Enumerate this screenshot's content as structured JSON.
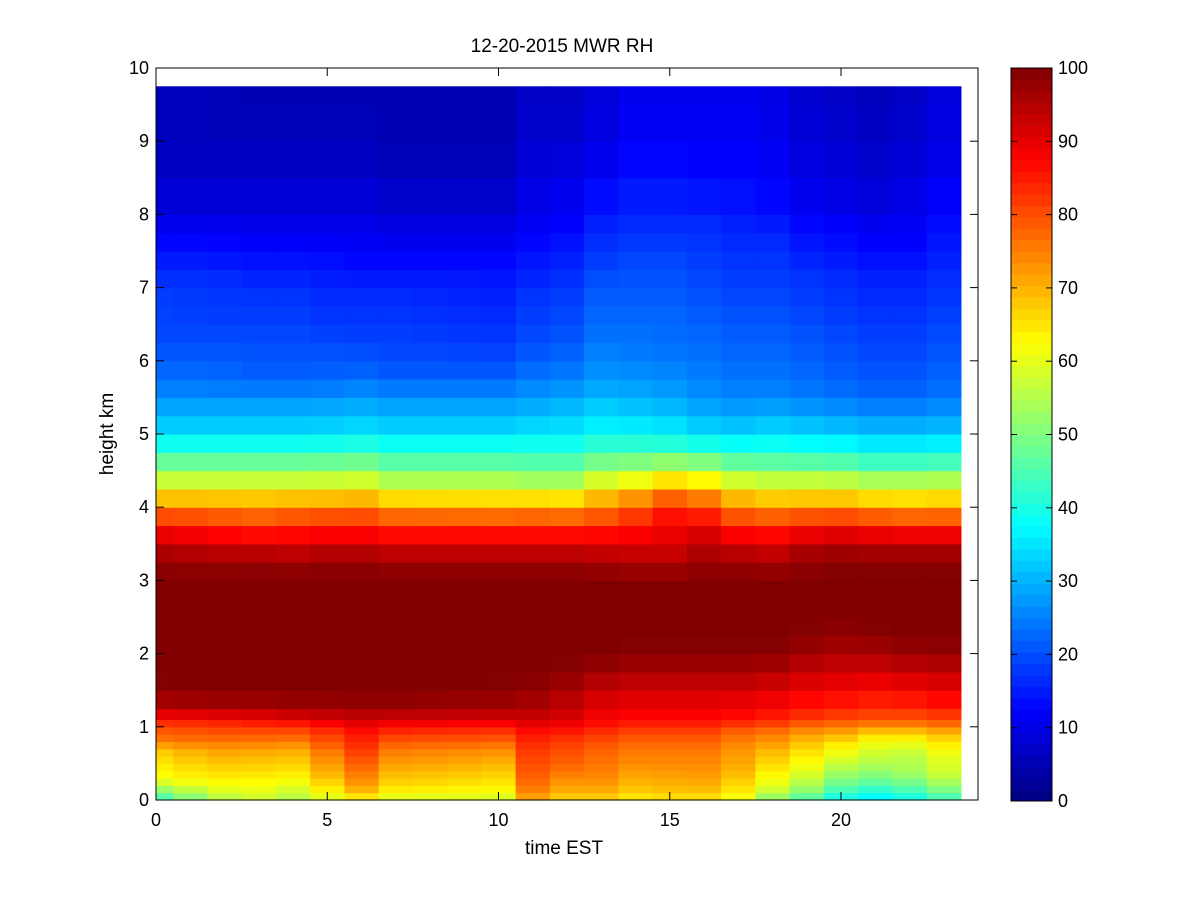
{
  "chart_data": {
    "type": "heatmap",
    "title": "12-20-2015 MWR RH",
    "xlabel": "time EST",
    "ylabel": "height km",
    "xlim": [
      0,
      24
    ],
    "ylim": [
      0,
      10
    ],
    "xticks": [
      0,
      5,
      10,
      15,
      20
    ],
    "yticks": [
      0,
      1,
      2,
      3,
      4,
      5,
      6,
      7,
      8,
      9,
      10
    ],
    "colorbar": {
      "range": [
        0,
        100
      ],
      "ticks": [
        0,
        10,
        20,
        30,
        40,
        50,
        60,
        70,
        80,
        90,
        100
      ],
      "colormap": "jet"
    },
    "time_centers": [
      0,
      1,
      2,
      3,
      4,
      5,
      6,
      7,
      8,
      9,
      10,
      11,
      12,
      13,
      14,
      15,
      16,
      17,
      18,
      19,
      20,
      21,
      22,
      23
    ],
    "height_edges": [
      0,
      0.1,
      0.2,
      0.3,
      0.4,
      0.5,
      0.6,
      0.7,
      0.8,
      0.9,
      1.0,
      1.1,
      1.25,
      1.5,
      1.75,
      2.0,
      2.25,
      2.5,
      2.75,
      3.0,
      3.25,
      3.5,
      3.75,
      4.0,
      4.25,
      4.5,
      4.75,
      5.0,
      5.25,
      5.5,
      5.75,
      6.0,
      6.25,
      6.5,
      6.75,
      7.0,
      7.25,
      7.5,
      7.75,
      8.0,
      8.5,
      9.0,
      9.5,
      9.75
    ],
    "profile_x": [
      0,
      1.6,
      2.6,
      4,
      4.6,
      6,
      7,
      10,
      10.5,
      11,
      12,
      13,
      14,
      15,
      16,
      17,
      18,
      19,
      20,
      21,
      22,
      23.5
    ],
    "profile_y": [
      0,
      0.1,
      0.2,
      0.3,
      0.4,
      0.5,
      0.6,
      0.7,
      0.8,
      0.9,
      1.0,
      1.1,
      1.25,
      1.5,
      1.75,
      2.0,
      2.25,
      2.5,
      2.75,
      3.0,
      3.25,
      3.5,
      3.75,
      4.0,
      4.25,
      4.5,
      4.75,
      5.0,
      5.25,
      5.5,
      5.75,
      6.0,
      6.25,
      6.5,
      6.75,
      7.0,
      7.25,
      7.5,
      7.75,
      8.0,
      8.5,
      9.0,
      9.5
    ],
    "profile_rh": [
      [
        43,
        49,
        56,
        62,
        63,
        65,
        66,
        69,
        75,
        78,
        80,
        86,
        94,
        99,
        100,
        100,
        100,
        100,
        100,
        100,
        98,
        94,
        85,
        75,
        62,
        52,
        43,
        35,
        30,
        27,
        23,
        22,
        20,
        19,
        19,
        18,
        16,
        14,
        12,
        10,
        7,
        6,
        6
      ],
      [
        52,
        57,
        61,
        64,
        66,
        68,
        70,
        72,
        76,
        79,
        81,
        86,
        95,
        100,
        100,
        100,
        100,
        100,
        100,
        100,
        97,
        92,
        84,
        75,
        62,
        52,
        43,
        35,
        30,
        27,
        23,
        22,
        20,
        19,
        18,
        18,
        16,
        14,
        12,
        10,
        7,
        6,
        6
      ],
      [
        57,
        61,
        62,
        64,
        66,
        68,
        70,
        72,
        76,
        79,
        82,
        87,
        95,
        100,
        100,
        100,
        100,
        100,
        100,
        100,
        98,
        91,
        82,
        73,
        62,
        52,
        43,
        35,
        30,
        27,
        22,
        21,
        20,
        19,
        18,
        17,
        15,
        13,
        11,
        10,
        7,
        6,
        5
      ],
      [
        55,
        57,
        60,
        63,
        65,
        67,
        69,
        71,
        75,
        79,
        82,
        89,
        96,
        100,
        100,
        100,
        100,
        100,
        100,
        100,
        97,
        91,
        83,
        75,
        62,
        52,
        43,
        35,
        30,
        27,
        22,
        21,
        20,
        19,
        18,
        17,
        15,
        13,
        11,
        10,
        7,
        6,
        5
      ],
      [
        57,
        60,
        63,
        66,
        68,
        70,
        72,
        74,
        78,
        80,
        84,
        90,
        96,
        100,
        100,
        100,
        100,
        100,
        100,
        100,
        98,
        92,
        84,
        75,
        62,
        52,
        43,
        35,
        30,
        27,
        22,
        21,
        20,
        18,
        17,
        16,
        15,
        13,
        11,
        10,
        7,
        6,
        5
      ],
      [
        62,
        68,
        72,
        74,
        76,
        78,
        80,
        82,
        84,
        85,
        88,
        92,
        97,
        100,
        100,
        100,
        100,
        100,
        100,
        100,
        98,
        92,
        84,
        76,
        63,
        53,
        44,
        36,
        31,
        28,
        23,
        21,
        19,
        18,
        17,
        16,
        14,
        12,
        11,
        10,
        7,
        6,
        5
      ],
      [
        58,
        63,
        66,
        68,
        70,
        72,
        74,
        76,
        79,
        82,
        86,
        91,
        97,
        100,
        100,
        100,
        100,
        100,
        100,
        100,
        97,
        91,
        82,
        73,
        59,
        50,
        42,
        35,
        30,
        27,
        22,
        20,
        19,
        18,
        17,
        16,
        14,
        12,
        10,
        9,
        6,
        5,
        5
      ],
      [
        57,
        62,
        64,
        66,
        68,
        70,
        72,
        74,
        78,
        81,
        85,
        91,
        96,
        99,
        100,
        100,
        100,
        100,
        100,
        100,
        97,
        91,
        82,
        72,
        59,
        50,
        42,
        35,
        30,
        27,
        22,
        20,
        18,
        17,
        16,
        15,
        14,
        12,
        10,
        9,
        6,
        5,
        5
      ],
      [
        60,
        66,
        69,
        71,
        72,
        74,
        76,
        78,
        80,
        82,
        86,
        91,
        94,
        98,
        100,
        100,
        100,
        100,
        100,
        100,
        97,
        91,
        83,
        73,
        58,
        49,
        41,
        35,
        30,
        27,
        22,
        20,
        18,
        17,
        17,
        16,
        14,
        12,
        11,
        10,
        8,
        7,
        6
      ],
      [
        70,
        74,
        76,
        78,
        79,
        80,
        81,
        82,
        84,
        85,
        88,
        92,
        95,
        98,
        100,
        100,
        100,
        100,
        100,
        100,
        97,
        91,
        82,
        73,
        58,
        49,
        42,
        36,
        31,
        28,
        24,
        22,
        20,
        19,
        18,
        17,
        15,
        14,
        12,
        11,
        9,
        8,
        7
      ],
      [
        66,
        70,
        72,
        74,
        76,
        78,
        79,
        80,
        82,
        84,
        87,
        91,
        93,
        96,
        99,
        100,
        100,
        100,
        100,
        100,
        97,
        91,
        82,
        72,
        58,
        49,
        42,
        36,
        32,
        29,
        25,
        23,
        21,
        20,
        19,
        18,
        16,
        15,
        13,
        12,
        10,
        8,
        7
      ],
      [
        66,
        70,
        72,
        74,
        75,
        76,
        77,
        78,
        80,
        82,
        85,
        88,
        90,
        93,
        97,
        100,
        100,
        100,
        100,
        100,
        96,
        91,
        83,
        75,
        64,
        53,
        45,
        38,
        34,
        31,
        27,
        26,
        24,
        23,
        22,
        21,
        19,
        18,
        16,
        15,
        12,
        10,
        9
      ],
      [
        63,
        67,
        69,
        71,
        72,
        74,
        75,
        76,
        78,
        80,
        83,
        87,
        89,
        92,
        96,
        99,
        100,
        100,
        100,
        100,
        95,
        91,
        85,
        79,
        67,
        55,
        45,
        38,
        33,
        30,
        27,
        25,
        24,
        23,
        22,
        21,
        20,
        19,
        17,
        16,
        14,
        12,
        11
      ],
      [
        64,
        68,
        70,
        71,
        73,
        74,
        75,
        76,
        78,
        80,
        83,
        87,
        89,
        92,
        96,
        99,
        100,
        100,
        100,
        100,
        95,
        91,
        88,
        84,
        72,
        58,
        45,
        37,
        32,
        29,
        26,
        25,
        23,
        23,
        22,
        21,
        20,
        19,
        17,
        16,
        14,
        12,
        11
      ],
      [
        64,
        68,
        70,
        72,
        73,
        74,
        75,
        76,
        78,
        80,
        83,
        87,
        89,
        92,
        96,
        99,
        100,
        100,
        100,
        100,
        97,
        94,
        89,
        81,
        70,
        56,
        44,
        35,
        30,
        27,
        25,
        24,
        23,
        22,
        21,
        20,
        19,
        18,
        17,
        16,
        13,
        12,
        11
      ],
      [
        60,
        64,
        66,
        68,
        70,
        71,
        72,
        73,
        75,
        77,
        80,
        86,
        88,
        92,
        96,
        99,
        100,
        100,
        100,
        100,
        97,
        92,
        84,
        75,
        64,
        52,
        42,
        34,
        29,
        26,
        24,
        23,
        22,
        21,
        20,
        19,
        18,
        17,
        16,
        15,
        13,
        12,
        11
      ],
      [
        50,
        56,
        60,
        62,
        64,
        66,
        68,
        70,
        73,
        75,
        79,
        84,
        87,
        91,
        95,
        99,
        100,
        100,
        100,
        100,
        96,
        91,
        83,
        73,
        62,
        51,
        42,
        35,
        30,
        26,
        24,
        23,
        22,
        21,
        20,
        19,
        18,
        17,
        16,
        14,
        12,
        11,
        10
      ],
      [
        44,
        50,
        54,
        57,
        60,
        62,
        64,
        66,
        69,
        72,
        76,
        82,
        85,
        89,
        93,
        97,
        99,
        100,
        100,
        100,
        98,
        94,
        85,
        74,
        62,
        51,
        41,
        34,
        29,
        25,
        23,
        22,
        21,
        20,
        19,
        18,
        17,
        15,
        14,
        12,
        10,
        9,
        8
      ],
      [
        38,
        43,
        47,
        51,
        54,
        57,
        60,
        62,
        66,
        70,
        75,
        80,
        84,
        88,
        92,
        96,
        98,
        100,
        100,
        100,
        99,
        95,
        86,
        74,
        62,
        50,
        41,
        33,
        28,
        24,
        22,
        21,
        20,
        19,
        18,
        17,
        16,
        14,
        13,
        11,
        9,
        8,
        7
      ],
      [
        35,
        40,
        45,
        49,
        52,
        55,
        57,
        59,
        62,
        66,
        73,
        79,
        83,
        87,
        92,
        96,
        99,
        100,
        100,
        100,
        99,
        94,
        85,
        72,
        60,
        48,
        39,
        32,
        27,
        23,
        21,
        20,
        19,
        18,
        17,
        16,
        15,
        13,
        12,
        10,
        8,
        7,
        6
      ],
      [
        38,
        43,
        47,
        51,
        54,
        55,
        56,
        58,
        62,
        66,
        73,
        79,
        83,
        88,
        93,
        97,
        100,
        100,
        100,
        100,
        99,
        94,
        84,
        71,
        60,
        48,
        39,
        32,
        27,
        23,
        21,
        20,
        19,
        18,
        17,
        16,
        15,
        13,
        12,
        11,
        9,
        8,
        7
      ],
      [
        45,
        50,
        54,
        58,
        60,
        61,
        62,
        64,
        67,
        70,
        75,
        81,
        85,
        90,
        94,
        98,
        100,
        100,
        100,
        100,
        99,
        94,
        84,
        72,
        61,
        49,
        40,
        33,
        28,
        25,
        23,
        22,
        21,
        20,
        19,
        18,
        17,
        16,
        15,
        14,
        12,
        11,
        10
      ]
    ]
  }
}
